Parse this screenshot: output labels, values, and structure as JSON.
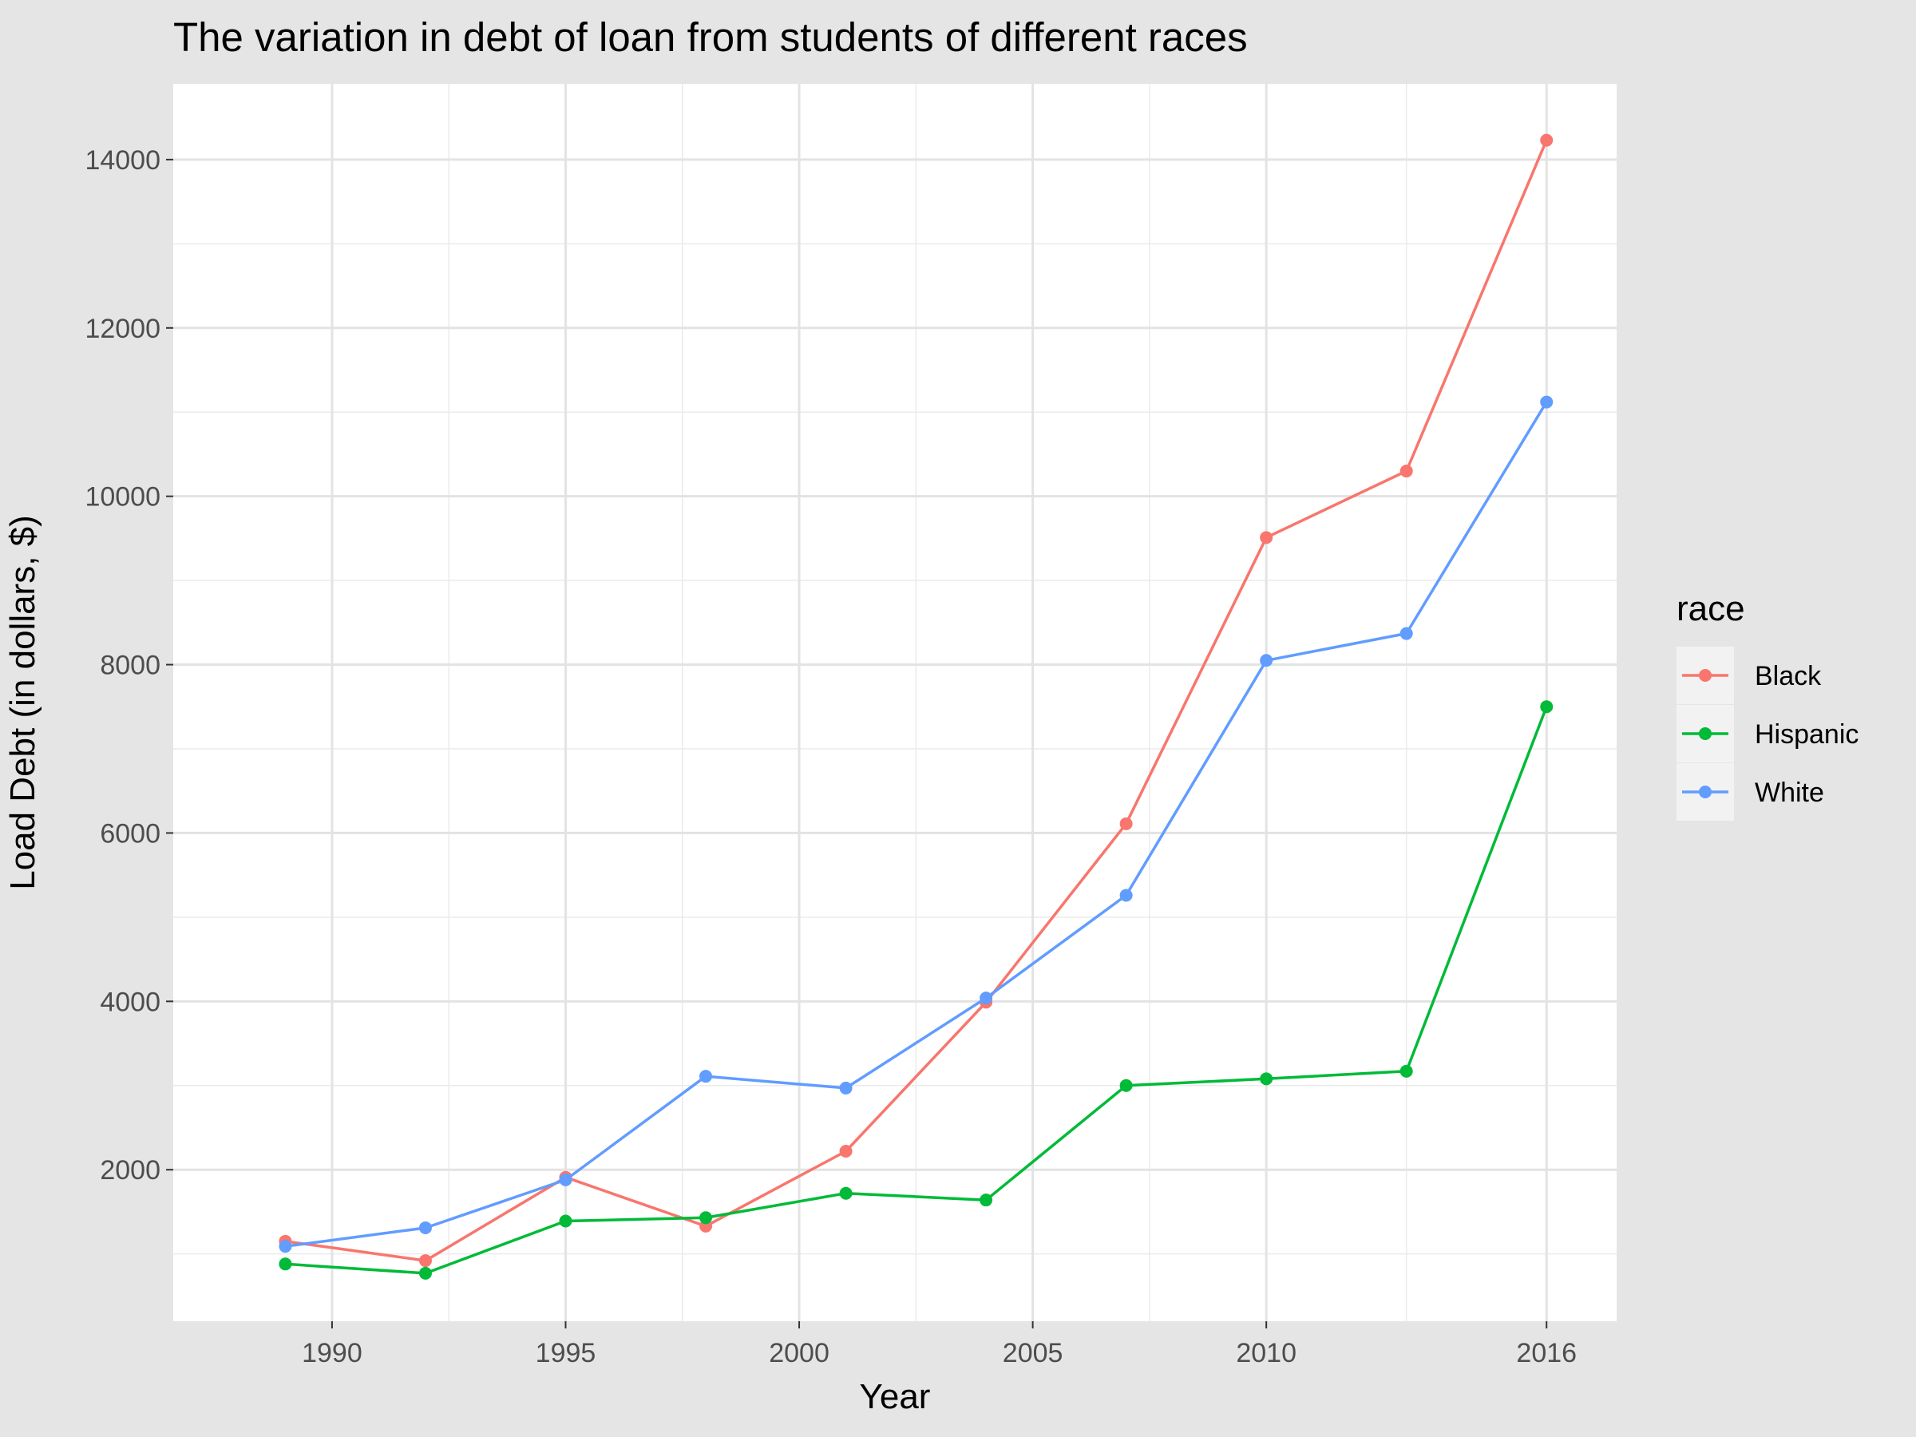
{
  "chart_data": {
    "type": "line",
    "title": "The variation in debt of loan from students of different races",
    "xlabel": "Year",
    "ylabel": "Load Debt (in dollars, $)",
    "x": [
      1989,
      1992,
      1995,
      1998,
      2001,
      2004,
      2007,
      2010,
      2013,
      2016
    ],
    "x_ticks": [
      1990,
      1995,
      2000,
      2005,
      2010,
      2016
    ],
    "y_ticks": [
      2000,
      4000,
      6000,
      8000,
      10000,
      12000,
      14000
    ],
    "xlim": [
      1986.6,
      2017.5
    ],
    "ylim": [
      200,
      14900
    ],
    "grid": true,
    "legend": {
      "title": "race",
      "position": "right"
    },
    "series": [
      {
        "name": "Black",
        "color": "#F8766D",
        "values": [
          1150,
          920,
          1910,
          1330,
          2220,
          3990,
          6110,
          9510,
          10300,
          14230
        ]
      },
      {
        "name": "Hispanic",
        "color": "#00BA38",
        "values": [
          880,
          770,
          1390,
          1430,
          1720,
          1640,
          3000,
          3080,
          3170,
          7500
        ]
      },
      {
        "name": "White",
        "color": "#619CFF",
        "values": [
          1090,
          1310,
          1880,
          3110,
          2970,
          4040,
          5260,
          8050,
          8370,
          11120
        ]
      }
    ]
  }
}
